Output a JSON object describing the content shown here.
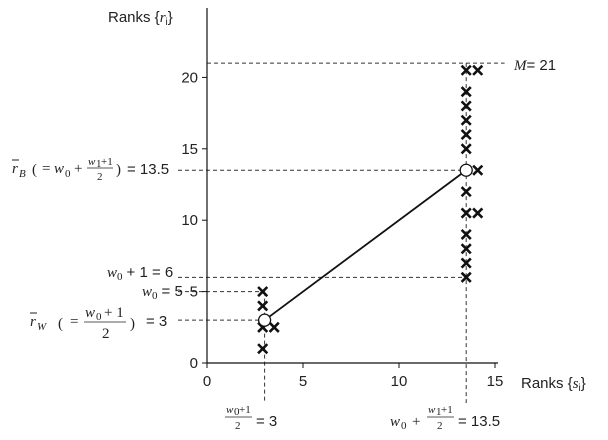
{
  "chart_data": {
    "type": "scatter",
    "xlabel_prefix": "Ranks {",
    "xlabel_var": "s",
    "xlabel_sub": "i",
    "xlabel_suffix": "}",
    "ylabel_prefix": "Ranks {",
    "ylabel_var": "r",
    "ylabel_sub": "i",
    "ylabel_suffix": "}",
    "xlim": [
      0,
      15
    ],
    "ylim": [
      0,
      21
    ],
    "x_ticks": [
      0,
      5,
      10,
      15
    ],
    "y_ticks": [
      0,
      5,
      10,
      15,
      20
    ],
    "points": [
      {
        "x": 2.9,
        "y": 1
      },
      {
        "x": 2.9,
        "y": 2.5
      },
      {
        "x": 3.5,
        "y": 2.5
      },
      {
        "x": 2.9,
        "y": 4
      },
      {
        "x": 2.9,
        "y": 5
      },
      {
        "x": 13.5,
        "y": 6
      },
      {
        "x": 13.5,
        "y": 7
      },
      {
        "x": 13.5,
        "y": 8
      },
      {
        "x": 13.5,
        "y": 9
      },
      {
        "x": 13.5,
        "y": 10.5
      },
      {
        "x": 14.1,
        "y": 10.5
      },
      {
        "x": 13.5,
        "y": 12
      },
      {
        "x": 14.1,
        "y": 13.5
      },
      {
        "x": 13.5,
        "y": 15
      },
      {
        "x": 13.5,
        "y": 16
      },
      {
        "x": 13.5,
        "y": 17
      },
      {
        "x": 13.5,
        "y": 18
      },
      {
        "x": 13.5,
        "y": 19
      },
      {
        "x": 13.5,
        "y": 20.5
      },
      {
        "x": 14.1,
        "y": 20.5
      }
    ],
    "means": [
      {
        "x": 3,
        "y": 3
      },
      {
        "x": 13.5,
        "y": 13.5
      }
    ],
    "hlines": [
      {
        "y": 21,
        "x_end": 15.5
      },
      {
        "y": 13.5,
        "x_end": 13.5
      },
      {
        "y": 6,
        "x_end": 13.5
      },
      {
        "y": 5,
        "x_end": 3
      },
      {
        "y": 3,
        "x_end": 3
      }
    ],
    "vlines": [
      {
        "x": 3,
        "y_top": 5
      },
      {
        "x": 13.5,
        "y_top": 21
      }
    ],
    "annotations": {
      "M_label": "M",
      "M_value": "= 21",
      "rB_value": "= 13.5",
      "w0p1_value": "+ 1 = 6",
      "w0_value": "= 5",
      "rW_value": "= 3",
      "bx_left_value": "= 3",
      "bx_right_value": "= 13.5"
    }
  }
}
